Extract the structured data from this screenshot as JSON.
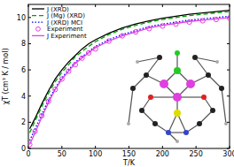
{
  "chart_data": {
    "type": "line",
    "x_label": "T/K",
    "y_label": "χT (cm³ K / mol)",
    "x": [
      2,
      10,
      20,
      30,
      40,
      50,
      60,
      70,
      80,
      90,
      100,
      120,
      140,
      160,
      180,
      200,
      220,
      240,
      260,
      280,
      300
    ],
    "xlim": [
      0,
      300
    ],
    "xticks": [
      0,
      50,
      100,
      150,
      200,
      250,
      300
    ],
    "ylim": [
      0,
      11
    ],
    "yticks": [
      0,
      2,
      4,
      6,
      8,
      10
    ],
    "legend": "top-left",
    "series": [
      {
        "name": "J (XRD)",
        "color": "#000000",
        "type": "line",
        "line_style": "solid",
        "values": [
          1.5,
          2.3,
          3.4,
          4.4,
          5.3,
          6.0,
          6.6,
          7.1,
          7.6,
          8.0,
          8.3,
          8.8,
          9.2,
          9.5,
          9.75,
          9.95,
          10.1,
          10.25,
          10.35,
          10.45,
          10.55
        ]
      },
      {
        "name": "J (Mg) (XRD)",
        "color": "#00a000",
        "type": "line",
        "line_style": "dashed",
        "values": [
          1.2,
          2.1,
          3.2,
          4.2,
          5.1,
          5.8,
          6.4,
          7.0,
          7.4,
          7.8,
          8.15,
          8.7,
          9.1,
          9.4,
          9.65,
          9.85,
          10.0,
          10.15,
          10.25,
          10.35,
          10.45
        ]
      },
      {
        "name": "J (XRD) MCI",
        "color": "#0000ff",
        "type": "line",
        "line_style": "dotted",
        "values": [
          0.6,
          1.5,
          2.6,
          3.7,
          4.6,
          5.4,
          6.0,
          6.6,
          7.0,
          7.4,
          7.8,
          8.3,
          8.7,
          9.0,
          9.3,
          9.5,
          9.65,
          9.8,
          9.9,
          10.0,
          10.1
        ]
      },
      {
        "name": "Experiment",
        "color": "#e040e0",
        "type": "scatter",
        "marker": "circle",
        "values": [
          0.3,
          1.3,
          2.5,
          3.6,
          4.5,
          5.3,
          5.9,
          6.4,
          6.9,
          7.3,
          7.6,
          8.2,
          8.6,
          8.9,
          9.15,
          9.35,
          9.5,
          9.65,
          9.75,
          9.85,
          9.95
        ]
      },
      {
        "name": "J Experiment",
        "color": "#e040e0",
        "type": "line",
        "line_style": "solid",
        "values": [
          0.3,
          1.2,
          2.4,
          3.5,
          4.5,
          5.3,
          5.9,
          6.5,
          6.9,
          7.3,
          7.7,
          8.2,
          8.6,
          8.9,
          9.2,
          9.4,
          9.55,
          9.7,
          9.8,
          9.9,
          10.0
        ]
      }
    ]
  }
}
